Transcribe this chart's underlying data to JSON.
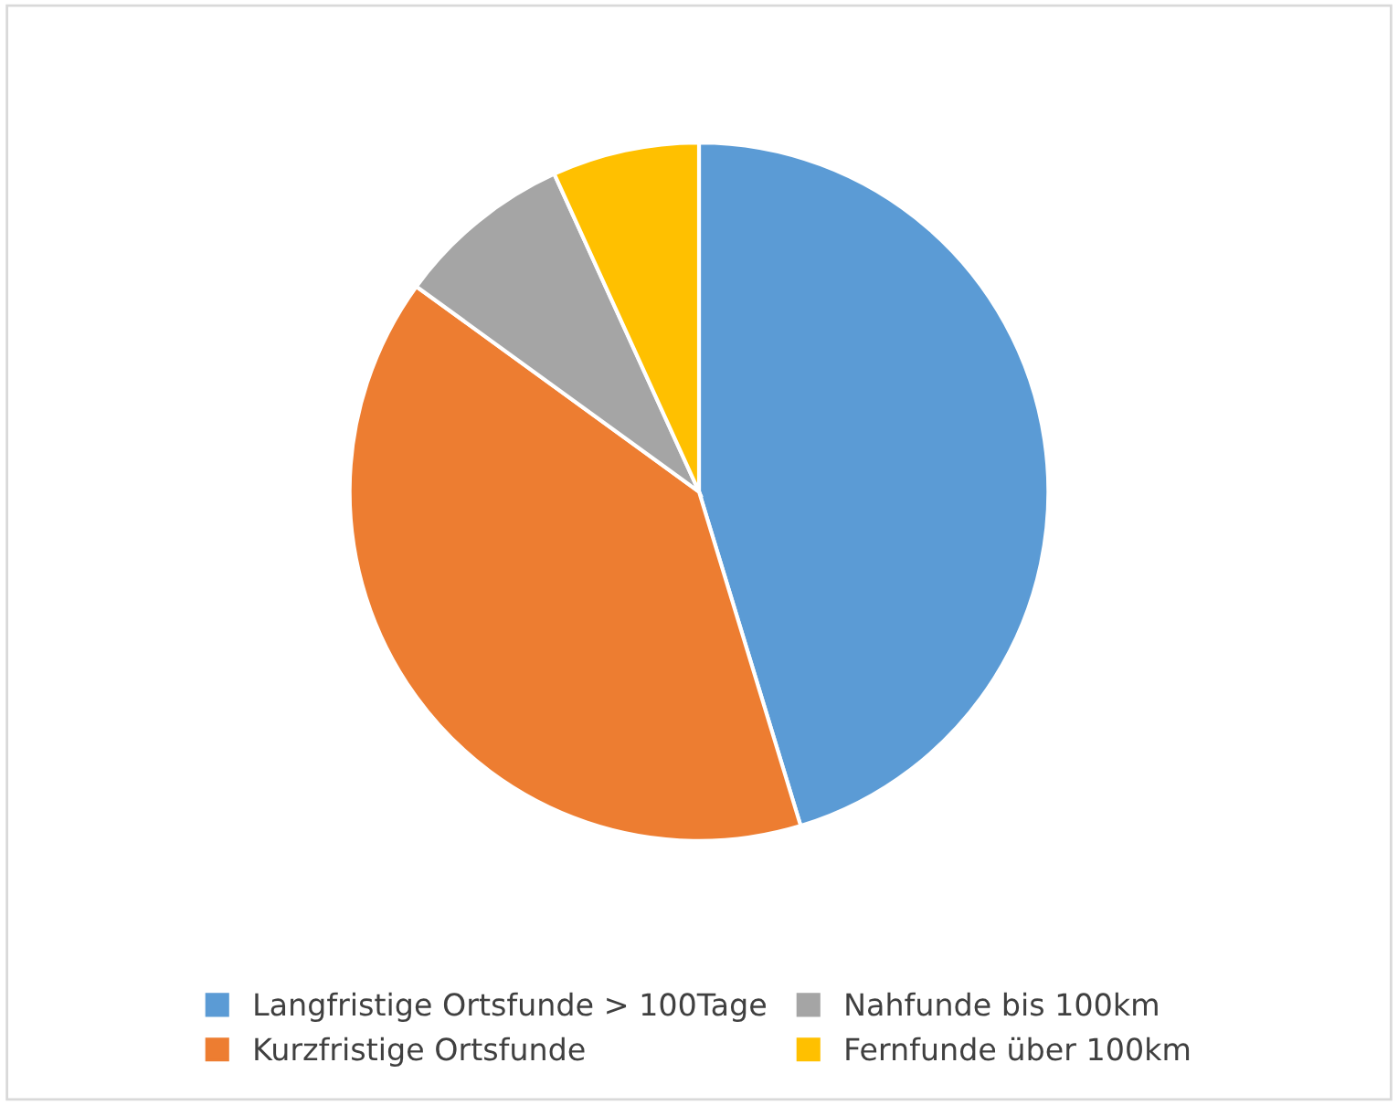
{
  "chart_data": {
    "type": "pie",
    "categories": [
      "Langfristige Ortsfunde > 100Tage",
      "Kurzfristige Ortsfunde",
      "Nahfunde bis 100km",
      "Fernfunde über 100km"
    ],
    "values": [
      45.3,
      39.7,
      8.2,
      6.8
    ],
    "colors": [
      "#5b9bd5",
      "#ed7d31",
      "#a5a5a5",
      "#ffc000"
    ],
    "legend": "bottom"
  }
}
